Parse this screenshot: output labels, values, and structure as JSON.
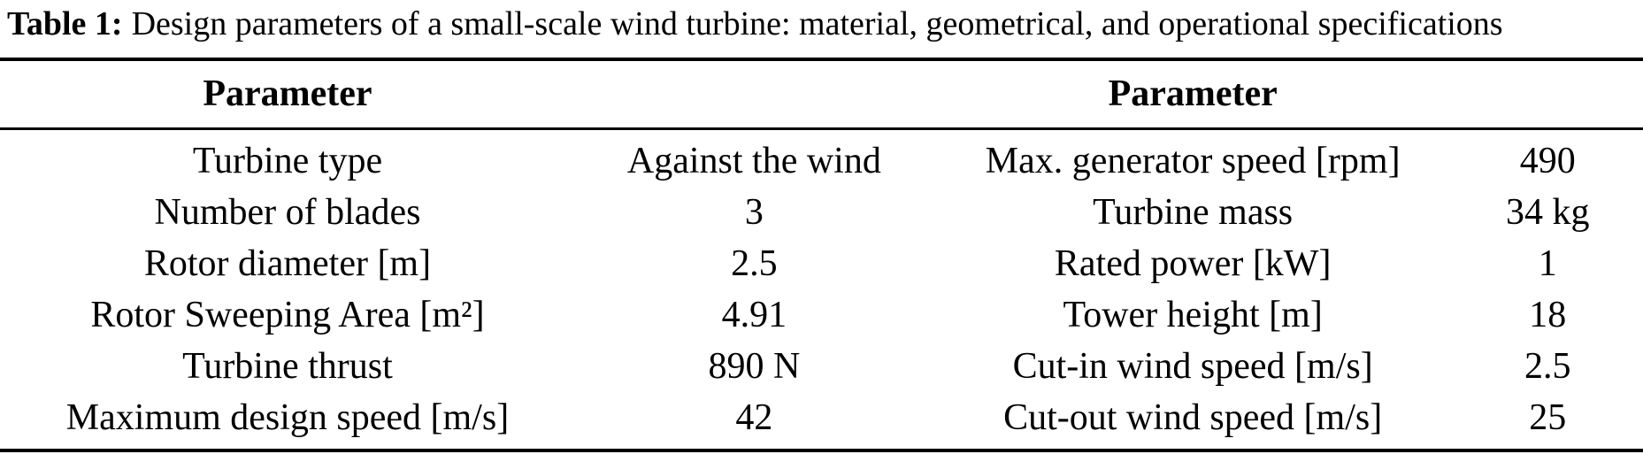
{
  "caption": {
    "label": "Table 1:",
    "text": "Design parameters of a small-scale wind turbine: material, geometrical, and operational specifications"
  },
  "table": {
    "header": {
      "left": "Parameter",
      "right": "Parameter"
    },
    "rows": [
      {
        "param_left": "Turbine type",
        "value_left": "Against the wind",
        "param_right": "Max. generator speed [rpm]",
        "value_right": "490"
      },
      {
        "param_left": "Number of blades",
        "value_left": "3",
        "param_right": "Turbine mass",
        "value_right": "34 kg"
      },
      {
        "param_left": "Rotor diameter [m]",
        "value_left": "2.5",
        "param_right": "Rated power [kW]",
        "value_right": "1"
      },
      {
        "param_left": "Rotor Sweeping Area [m²]",
        "value_left": "4.91",
        "param_right": "Tower height [m]",
        "value_right": "18"
      },
      {
        "param_left": "Turbine thrust",
        "value_left": "890 N",
        "param_right": "Cut-in wind speed [m/s]",
        "value_right": "2.5"
      },
      {
        "param_left": "Maximum design speed [m/s]",
        "value_left": "42",
        "param_right": "Cut-out wind speed [m/s]",
        "value_right": "25"
      }
    ]
  }
}
